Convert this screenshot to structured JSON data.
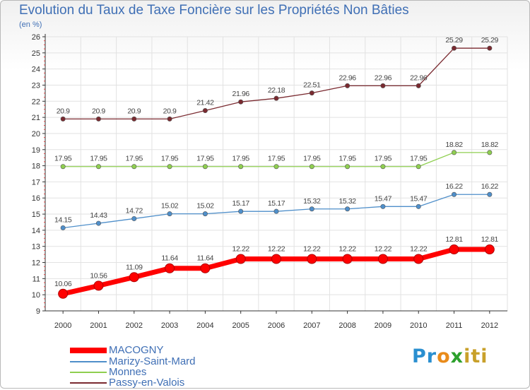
{
  "header": {
    "title": "Evolution du Taux de Taxe Foncière sur les Propriétés Non Bâties",
    "unit": "(en %)"
  },
  "logo": {
    "parts": [
      "Pr",
      "o",
      "x",
      "iti"
    ],
    "colors": [
      "#2a8fd0",
      "#e98b1a",
      "#2ca02c",
      "#c8a02a"
    ]
  },
  "chart_data": {
    "type": "line",
    "title": "Evolution du Taux de Taxe Foncière sur les Propriétés Non Bâties",
    "ylabel": "(en %)",
    "xlabel": "",
    "x": [
      "2000",
      "2001",
      "2002",
      "2003",
      "2004",
      "2005",
      "2006",
      "2007",
      "2008",
      "2009",
      "2010",
      "2011",
      "2012"
    ],
    "ylim": [
      9,
      26
    ],
    "yticks": [
      "9",
      "10",
      "11",
      "12",
      "13",
      "14",
      "15",
      "16",
      "17",
      "18",
      "19",
      "20",
      "21",
      "22",
      "23",
      "24",
      "25",
      "26"
    ],
    "grid": true,
    "legend_position": "bottom-left",
    "series": [
      {
        "name": "MACOGNY",
        "color": "#ff0000",
        "values": [
          10.06,
          10.56,
          11.09,
          11.64,
          11.64,
          12.22,
          12.22,
          12.22,
          12.22,
          12.22,
          12.22,
          12.81,
          12.81
        ],
        "labels": [
          "10.06",
          "10.56",
          "11.09",
          "11.64",
          "11.64",
          "12.22",
          "12.22",
          "12.22",
          "12.22",
          "12.22",
          "12.22",
          "12.81",
          "12.81"
        ]
      },
      {
        "name": "Marizy-Saint-Mard",
        "color": "#4f8fca",
        "values": [
          14.15,
          14.43,
          14.72,
          15.02,
          15.02,
          15.17,
          15.17,
          15.32,
          15.32,
          15.47,
          15.47,
          16.22,
          16.22
        ],
        "labels": [
          "14.15",
          "14.43",
          "14.72",
          "15.02",
          "15.02",
          "15.17",
          "15.17",
          "15.32",
          "15.32",
          "15.47",
          "15.47",
          "16.22",
          "16.22"
        ]
      },
      {
        "name": "Monnes",
        "color": "#8fcf50",
        "values": [
          17.95,
          17.95,
          17.95,
          17.95,
          17.95,
          17.95,
          17.95,
          17.95,
          17.95,
          17.95,
          17.95,
          18.82,
          18.82
        ],
        "labels": [
          "17.95",
          "17.95",
          "17.95",
          "17.95",
          "17.95",
          "17.95",
          "17.95",
          "17.95",
          "17.95",
          "17.95",
          "17.95",
          "18.82",
          "18.82"
        ]
      },
      {
        "name": "Passy-en-Valois",
        "color": "#7a2a30",
        "values": [
          20.9,
          20.9,
          20.9,
          20.9,
          21.42,
          21.96,
          22.18,
          22.51,
          22.96,
          22.96,
          22.96,
          25.29,
          25.29
        ],
        "labels": [
          "20.9",
          "20.9",
          "20.9",
          "20.9",
          "21.42",
          "21.96",
          "22.18",
          "22.51",
          "22.96",
          "22.96",
          "22.96",
          "25.29",
          "25.29"
        ]
      }
    ]
  }
}
